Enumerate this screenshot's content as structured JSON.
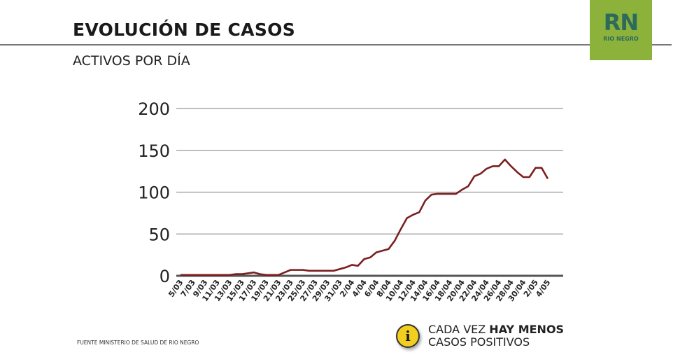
{
  "header": {
    "title": "EVOLUCIÓN DE CASOS",
    "subtitle": "ACTIVOS POR DÍA"
  },
  "logo": {
    "mark": "RN",
    "text": "RIO NEGRO",
    "color": "#8cb23b"
  },
  "footer": {
    "source": "FUENTE MINISTERIO DE SALUD DE RIO NEGRO",
    "note_plain": "CADA VEZ ",
    "note_bold": "HAY MENOS",
    "note_line2": "CASOS POSITIVOS",
    "icon": "info-icon"
  },
  "chart_data": {
    "type": "line",
    "title": "",
    "xlabel": "",
    "ylabel": "",
    "ylim": [
      0,
      200
    ],
    "yticks": [
      0,
      50,
      100,
      150,
      200
    ],
    "grid": true,
    "line_color": "#7a1f1f",
    "xtick_labels": [
      "5/03",
      "7/03",
      "9/03",
      "11/03",
      "13/03",
      "15/03",
      "17/03",
      "19/03",
      "21/03",
      "23/03",
      "25/03",
      "27/03",
      "29/03",
      "31/03",
      "2/04",
      "4/04",
      "6/04",
      "8/04",
      "10/04",
      "12/04",
      "14/04",
      "16/04",
      "18/04",
      "20/04",
      "22/04",
      "24/04",
      "26/04",
      "28/04",
      "30/04",
      "2/05",
      "4/05"
    ],
    "values": [
      1,
      1,
      1,
      1,
      1,
      1,
      1,
      1,
      1,
      2,
      2,
      3,
      4,
      2,
      1,
      1,
      1,
      4,
      7,
      7,
      7,
      6,
      6,
      6,
      6,
      6,
      8,
      10,
      13,
      12,
      20,
      22,
      28,
      30,
      32,
      42,
      56,
      69,
      73,
      76,
      90,
      97,
      98,
      98,
      98,
      98,
      103,
      107,
      119,
      122,
      128,
      131,
      131,
      139,
      131,
      124,
      118,
      118,
      129,
      129,
      116
    ]
  }
}
